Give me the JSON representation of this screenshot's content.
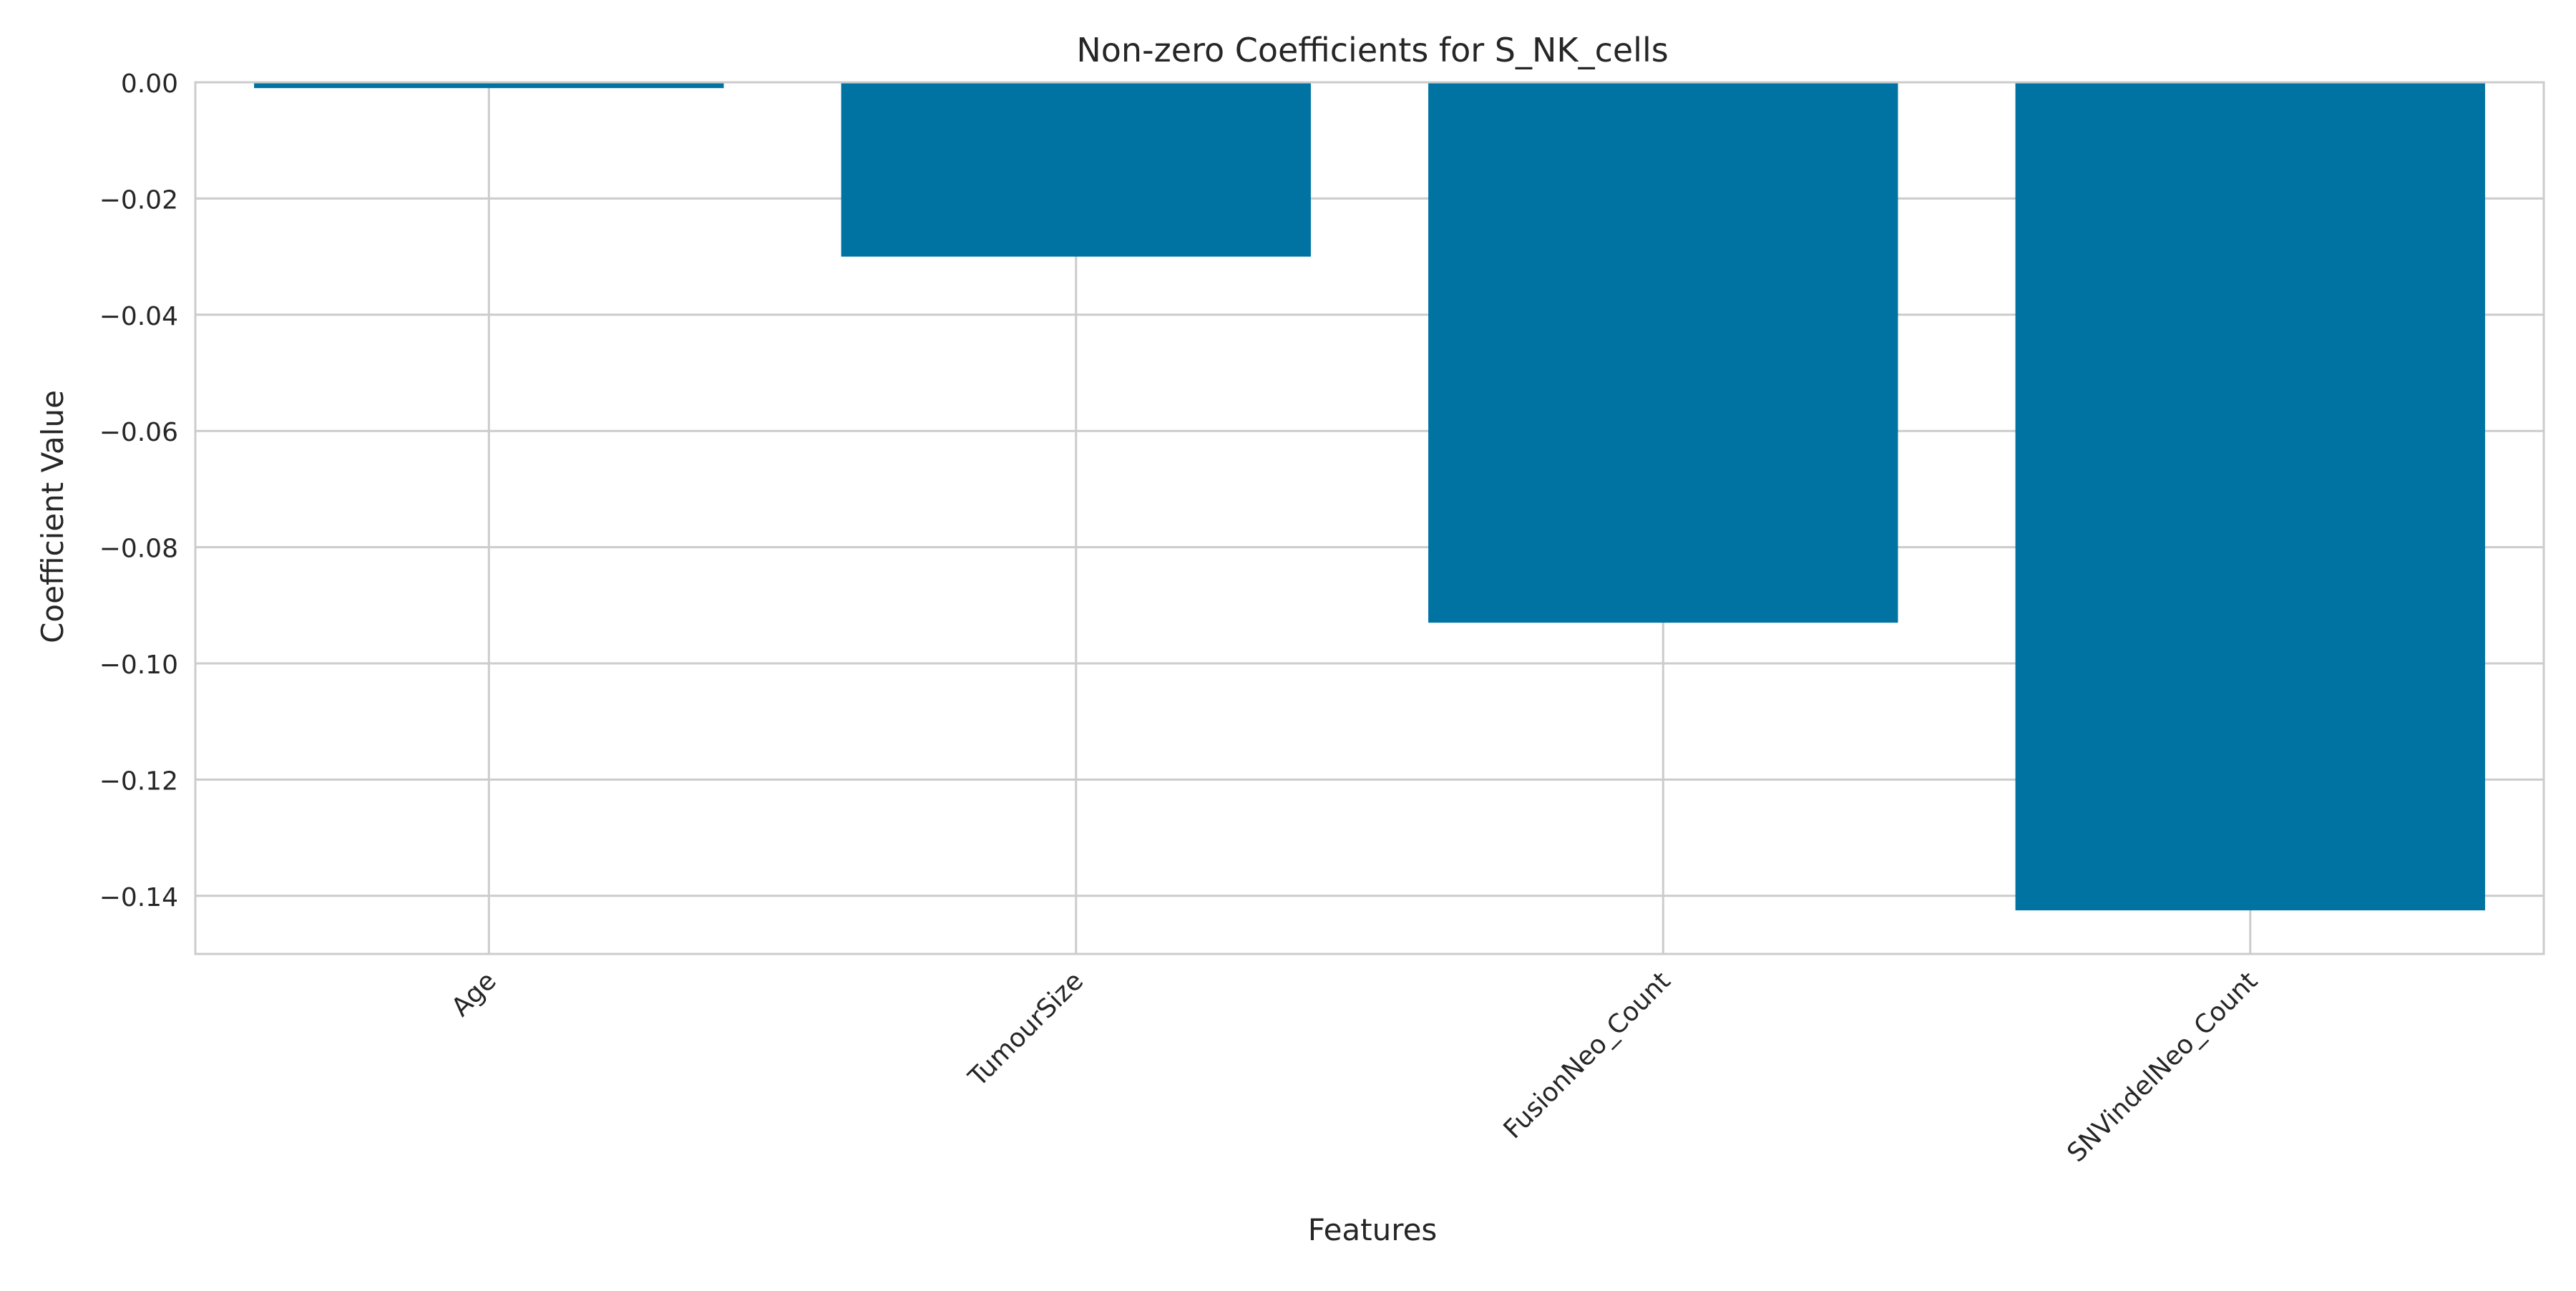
{
  "chart_data": {
    "type": "bar",
    "title": "Non-zero Coefficients for S_NK_cells",
    "xlabel": "Features",
    "ylabel": "Coefficient Value",
    "categories": [
      "Age",
      "TumourSize",
      "FusionNeo_Count",
      "SNVindelNeo_Count"
    ],
    "values": [
      -0.001,
      -0.03,
      -0.093,
      -0.1425
    ],
    "ylim": [
      -0.15,
      0.0
    ],
    "yticks": [
      0.0,
      -0.02,
      -0.04,
      -0.06,
      -0.08,
      -0.1,
      -0.12,
      -0.14
    ],
    "ytick_labels": [
      "0.00",
      "−0.02",
      "−0.04",
      "−0.06",
      "−0.08",
      "−0.10",
      "−0.12",
      "−0.14"
    ],
    "grid": true,
    "bar_color": "#0173a3",
    "grid_color": "#cccccc",
    "axes_edge_color": "#cccccc"
  }
}
